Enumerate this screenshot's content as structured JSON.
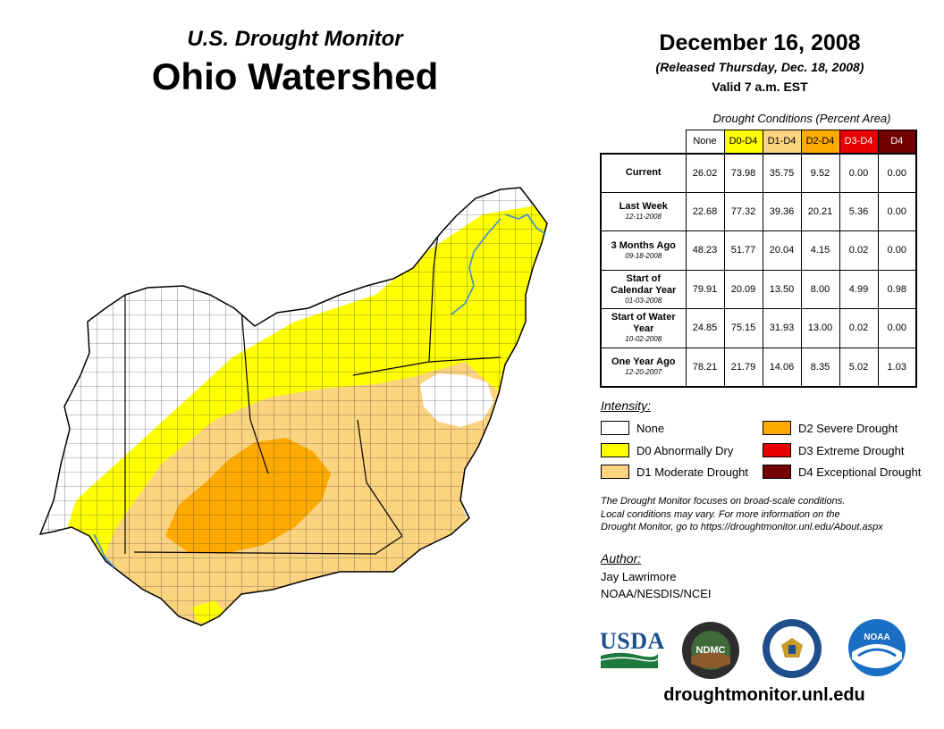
{
  "header": {
    "subtitle": "U.S. Drought Monitor",
    "title": "Ohio Watershed",
    "date": "December 16, 2008",
    "released": "(Released Thursday, Dec. 18, 2008)",
    "valid": "Valid 7 a.m. EST"
  },
  "conditions": {
    "caption": "Drought Conditions (Percent Area)",
    "columns": [
      {
        "label": "None",
        "color": "#ffffff",
        "text_color": "#000000"
      },
      {
        "label": "D0-D4",
        "color": "#ffff00",
        "text_color": "#000000"
      },
      {
        "label": "D1-D4",
        "color": "#fcd37f",
        "text_color": "#000000"
      },
      {
        "label": "D2-D4",
        "color": "#ffaa00",
        "text_color": "#000000"
      },
      {
        "label": "D3-D4",
        "color": "#e60000",
        "text_color": "#ffffff"
      },
      {
        "label": "D4",
        "color": "#730000",
        "text_color": "#ffffff"
      }
    ],
    "rows": [
      {
        "label": "Current",
        "sub": "",
        "values": [
          "26.02",
          "73.98",
          "35.75",
          "9.52",
          "0.00",
          "0.00"
        ]
      },
      {
        "label": "Last Week",
        "sub": "12-11-2008",
        "values": [
          "22.68",
          "77.32",
          "39.36",
          "20.21",
          "5.36",
          "0.00"
        ]
      },
      {
        "label": "3 Months Ago",
        "sub": "09-18-2008",
        "values": [
          "48.23",
          "51.77",
          "20.04",
          "4.15",
          "0.02",
          "0.00"
        ]
      },
      {
        "label": "Start of Calendar Year",
        "sub": "01-03-2008",
        "values": [
          "79.91",
          "20.09",
          "13.50",
          "8.00",
          "4.99",
          "0.98"
        ]
      },
      {
        "label": "Start of Water Year",
        "sub": "10-02-2008",
        "values": [
          "24.85",
          "75.15",
          "31.93",
          "13.00",
          "0.02",
          "0.00"
        ]
      },
      {
        "label": "One Year Ago",
        "sub": "12-20-2007",
        "values": [
          "78.21",
          "21.79",
          "14.06",
          "8.35",
          "5.02",
          "1.03"
        ]
      }
    ]
  },
  "legend": {
    "title": "Intensity:",
    "items": [
      {
        "label": "None",
        "color": "#ffffff"
      },
      {
        "label": "D0 Abnormally Dry",
        "color": "#ffff00"
      },
      {
        "label": "D1 Moderate Drought",
        "color": "#fcd37f"
      },
      {
        "label": "D2 Severe Drought",
        "color": "#ffaa00"
      },
      {
        "label": "D3 Extreme Drought",
        "color": "#e60000"
      },
      {
        "label": "D4 Exceptional Drought",
        "color": "#730000"
      }
    ]
  },
  "note": {
    "line1": "The Drought Monitor focuses on broad-scale conditions.",
    "line2": "Local conditions may vary. For more information on the",
    "line3": "Drought Monitor, go to https://droughtmonitor.unl.edu/About.aspx"
  },
  "author": {
    "label": "Author:",
    "name": "Jay Lawrimore",
    "org": "NOAA/NESDIS/NCEI"
  },
  "logos": {
    "usda": "USDA",
    "ndmc": "NDMC",
    "noaa": "NOAA"
  },
  "website": "droughtmonitor.unl.edu",
  "colors": {
    "none": "#ffffff",
    "d0": "#ffff00",
    "d1": "#fcd37f",
    "d2": "#ffaa00",
    "river": "#3a8fd6"
  }
}
